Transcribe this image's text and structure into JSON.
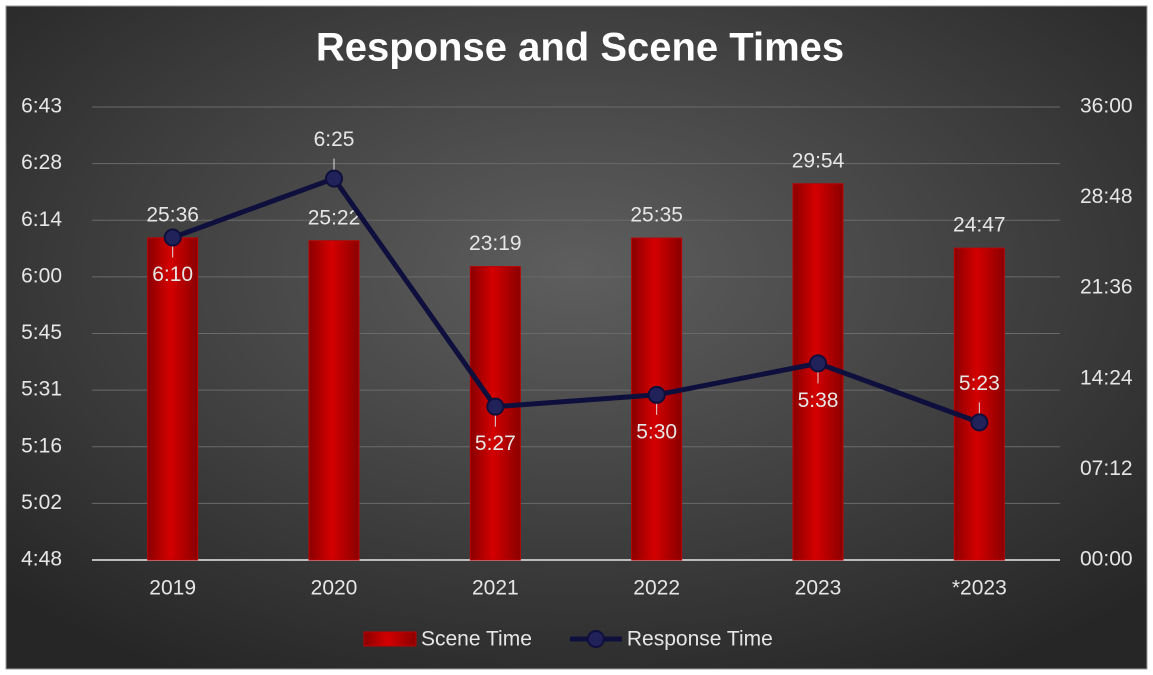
{
  "chart_data": {
    "type": "combo",
    "title": "Response and Scene Times",
    "categories": [
      "2019",
      "2020",
      "2021",
      "2022",
      "2023",
      "*2023"
    ],
    "series": [
      {
        "name": "Scene Time",
        "type": "bar",
        "axis": "y2",
        "color": "#c00000",
        "values": [
          1536,
          1522,
          1399,
          1535,
          1794,
          1487
        ],
        "value_labels": [
          "25:36",
          "25:22",
          "23:19",
          "25:35",
          "29:54",
          "24:47"
        ]
      },
      {
        "name": "Response Time",
        "type": "line",
        "color": "#0f0f3d",
        "values": [
          370,
          385,
          327,
          330,
          338,
          323
        ],
        "value_labels": [
          "6:10",
          "6:25",
          "5:27",
          "5:30",
          "5:38",
          "5:23"
        ]
      }
    ],
    "ylim": [
      288,
      403.2
    ],
    "yticks": [
      {
        "value": 288,
        "label": "4:48"
      },
      {
        "value": 302.4,
        "label": "5:02"
      },
      {
        "value": 316.8,
        "label": "5:16"
      },
      {
        "value": 331.2,
        "label": "5:31"
      },
      {
        "value": 345.6,
        "label": "5:45"
      },
      {
        "value": 360,
        "label": "6:00"
      },
      {
        "value": 374.4,
        "label": "6:14"
      },
      {
        "value": 388.8,
        "label": "6:28"
      },
      {
        "value": 403.2,
        "label": "6:43"
      }
    ],
    "y2lim": [
      0,
      2160
    ],
    "y2ticks": [
      {
        "value": 0,
        "label": "00:00"
      },
      {
        "value": 432,
        "label": "07:12"
      },
      {
        "value": 864,
        "label": "14:24"
      },
      {
        "value": 1296,
        "label": "21:36"
      },
      {
        "value": 1728,
        "label": "28:48"
      },
      {
        "value": 2160,
        "label": "36:00"
      }
    ],
    "grid": true,
    "legend": "bottom"
  }
}
